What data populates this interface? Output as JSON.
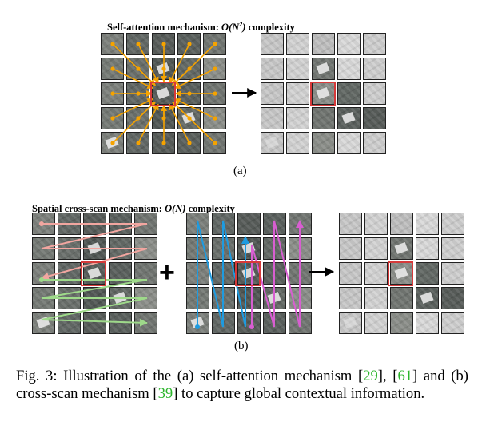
{
  "panel_a": {
    "title_prefix": "Self-attention mechanism: ",
    "title_formula": "O(N",
    "title_sup": "2",
    "title_close": ")",
    "title_suffix": " complexity",
    "label": "(a)"
  },
  "panel_b": {
    "title_prefix": "Spatial cross-scan mechanism: ",
    "title_formula": "O(N)",
    "title_suffix": " complexity",
    "label": "(b)"
  },
  "operators": {
    "plus": "+"
  },
  "caption": {
    "prefix": "Fig. 3: Illustration of the (a) self-attention mechanism [",
    "cite1": "29",
    "mid1": "], [",
    "cite2": "61",
    "mid2": "] and (b) cross-scan mechanism [",
    "cite3": "39",
    "suffix": "] to capture global contextual information."
  },
  "colors": {
    "attention_arrow": "#f5a300",
    "highlight": "#d63a3a",
    "scan_pink": "#f2a6a0",
    "scan_green": "#9ed98a",
    "scan_blue": "#1e9be0",
    "scan_magenta": "#d85ed1",
    "citation": "#2cb52c"
  }
}
